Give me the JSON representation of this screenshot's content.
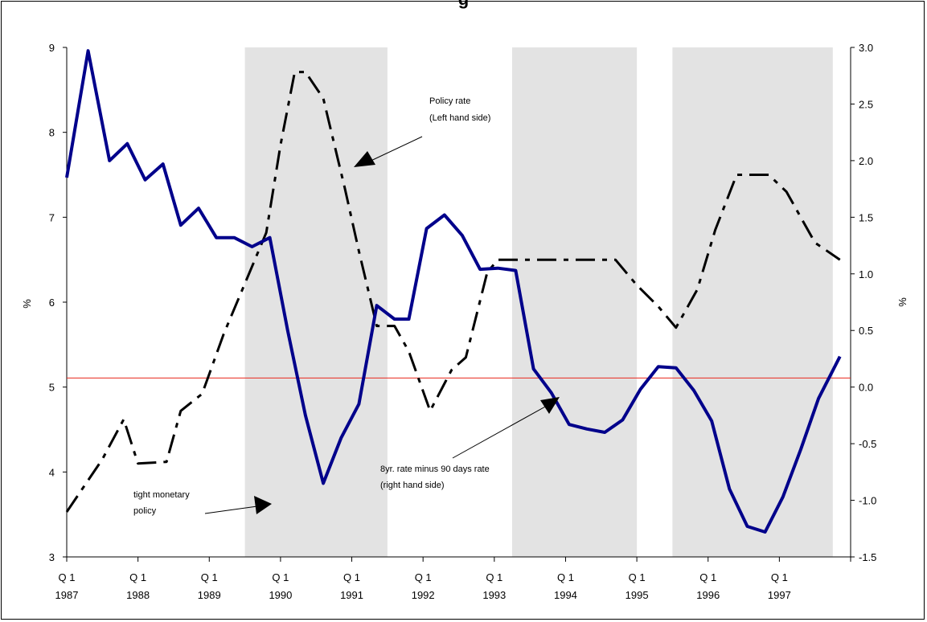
{
  "chart_data": {
    "type": "line",
    "title": "g",
    "ylabel_left": "%",
    "ylabel_right": "%",
    "ylim_left": [
      3,
      9
    ],
    "ylim_right": [
      -1.5,
      3.0
    ],
    "yticks_left": [
      "3",
      "4",
      "5",
      "6",
      "7",
      "8",
      "9"
    ],
    "yticks_right": [
      "-1.5",
      "-1.0",
      "-0.5",
      "0.0",
      "0.5",
      "1.0",
      "1.5",
      "2.0",
      "2.5",
      "3.0"
    ],
    "x_start_year": 1987,
    "x_end_year": 1998,
    "x_tick_labels": [
      {
        "q": "Q 1",
        "year": "1987"
      },
      {
        "q": "Q 1",
        "year": "1988"
      },
      {
        "q": "Q 1",
        "year": "1989"
      },
      {
        "q": "Q 1",
        "year": "1990"
      },
      {
        "q": "Q 1",
        "year": "1991"
      },
      {
        "q": "Q 1",
        "year": "1992"
      },
      {
        "q": "Q 1",
        "year": "1993"
      },
      {
        "q": "Q 1",
        "year": "1994"
      },
      {
        "q": "Q 1",
        "year": "1995"
      },
      {
        "q": "Q 1",
        "year": "1996"
      },
      {
        "q": "Q 1",
        "year": "1997"
      }
    ],
    "shaded_periods": [
      [
        1989.5,
        1991.5
      ],
      [
        1993.25,
        1995.0
      ],
      [
        1995.5,
        1997.75
      ]
    ],
    "reference_line_right_axis": 0.08,
    "reference_line_color": "#e8261c",
    "series": [
      {
        "name": "Policy rate (Left hand side)",
        "axis": "left",
        "color": "#000000",
        "style": "dash-dot",
        "points": [
          [
            1987.0,
            3.53
          ],
          [
            1987.5,
            4.15
          ],
          [
            1987.8,
            4.62
          ],
          [
            1988.0,
            4.1
          ],
          [
            1988.4,
            4.12
          ],
          [
            1988.6,
            4.72
          ],
          [
            1988.9,
            4.92
          ],
          [
            1989.2,
            5.62
          ],
          [
            1989.5,
            6.22
          ],
          [
            1989.8,
            6.82
          ],
          [
            1990.0,
            7.85
          ],
          [
            1990.2,
            8.71
          ],
          [
            1990.35,
            8.71
          ],
          [
            1990.6,
            8.4
          ],
          [
            1990.9,
            7.35
          ],
          [
            1991.1,
            6.6
          ],
          [
            1991.35,
            5.72
          ],
          [
            1991.6,
            5.72
          ],
          [
            1991.8,
            5.42
          ],
          [
            1992.1,
            4.72
          ],
          [
            1992.4,
            5.2
          ],
          [
            1992.6,
            5.35
          ],
          [
            1992.9,
            6.35
          ],
          [
            1993.05,
            6.5
          ],
          [
            1994.7,
            6.5
          ],
          [
            1995.0,
            6.2
          ],
          [
            1995.3,
            5.95
          ],
          [
            1995.55,
            5.7
          ],
          [
            1995.85,
            6.15
          ],
          [
            1996.1,
            6.85
          ],
          [
            1996.4,
            7.5
          ],
          [
            1996.85,
            7.5
          ],
          [
            1997.1,
            7.3
          ],
          [
            1997.5,
            6.7
          ],
          [
            1997.85,
            6.5
          ]
        ]
      },
      {
        "name": "8yr. rate minus 90 days rate (right hand side)",
        "axis": "right",
        "color": "#00008b",
        "style": "solid",
        "points": [
          [
            1987.0,
            1.85
          ],
          [
            1987.3,
            2.97
          ],
          [
            1987.6,
            2.0
          ],
          [
            1987.85,
            2.15
          ],
          [
            1988.1,
            1.83
          ],
          [
            1988.35,
            1.97
          ],
          [
            1988.6,
            1.43
          ],
          [
            1988.85,
            1.58
          ],
          [
            1989.1,
            1.32
          ],
          [
            1989.35,
            1.32
          ],
          [
            1989.6,
            1.24
          ],
          [
            1989.85,
            1.32
          ],
          [
            1990.1,
            0.5
          ],
          [
            1990.35,
            -0.25
          ],
          [
            1990.6,
            -0.85
          ],
          [
            1990.85,
            -0.45
          ],
          [
            1991.1,
            -0.15
          ],
          [
            1991.35,
            0.72
          ],
          [
            1991.6,
            0.6
          ],
          [
            1991.8,
            0.6
          ],
          [
            1992.05,
            1.4
          ],
          [
            1992.3,
            1.52
          ],
          [
            1992.55,
            1.34
          ],
          [
            1992.8,
            1.04
          ],
          [
            1993.05,
            1.05
          ],
          [
            1993.3,
            1.03
          ],
          [
            1993.55,
            0.16
          ],
          [
            1993.8,
            -0.05
          ],
          [
            1994.05,
            -0.33
          ],
          [
            1994.3,
            -0.37
          ],
          [
            1994.55,
            -0.4
          ],
          [
            1994.8,
            -0.29
          ],
          [
            1995.05,
            -0.02
          ],
          [
            1995.3,
            0.18
          ],
          [
            1995.55,
            0.17
          ],
          [
            1995.8,
            -0.03
          ],
          [
            1996.05,
            -0.3
          ],
          [
            1996.3,
            -0.9
          ],
          [
            1996.55,
            -1.23
          ],
          [
            1996.8,
            -1.28
          ],
          [
            1997.05,
            -0.97
          ],
          [
            1997.3,
            -0.55
          ],
          [
            1997.55,
            -0.1
          ],
          [
            1997.85,
            0.27
          ]
        ]
      }
    ],
    "annotations": [
      {
        "lines": [
          "Policy rate",
          "(Left hand  side)"
        ],
        "arrow_to": "policy-rate"
      },
      {
        "lines": [
          "8yr. rate minus 90 days rate",
          "(right hand side)"
        ],
        "arrow_to": "spread"
      },
      {
        "lines": [
          "tight monetary",
          "policy"
        ],
        "arrow_to": "shaded-region"
      }
    ]
  }
}
